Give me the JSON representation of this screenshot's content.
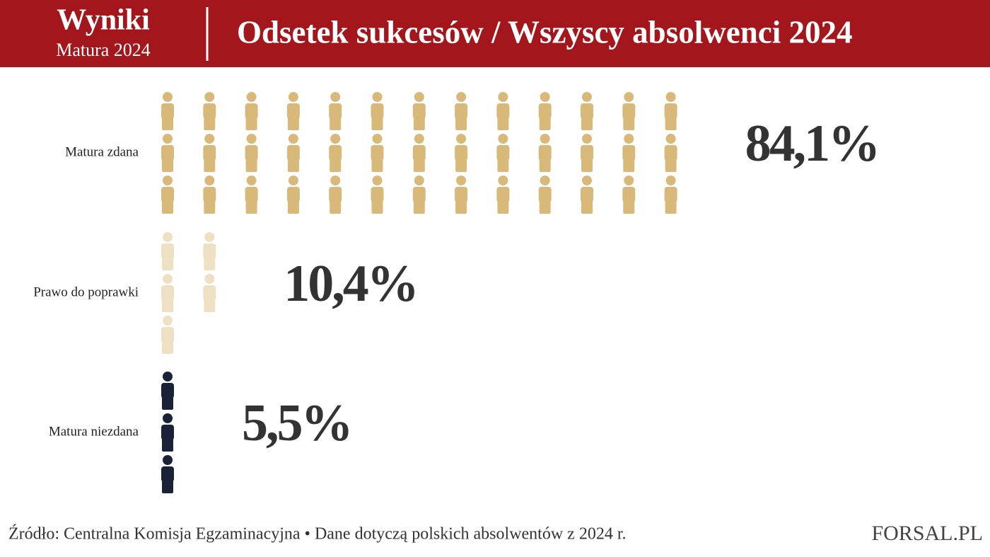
{
  "chart_data": {
    "type": "pictogram",
    "brand": "Wyniki",
    "brand_subtitle": "Matura 2024",
    "title": "Odsetek sukcesów / Wszyscy absolwenci 2024",
    "categories": [
      "Matura zdana",
      "Prawo do poprawki",
      "Matura niezdana"
    ],
    "values": [
      84.1,
      10.4,
      5.5
    ],
    "value_labels": [
      "84,1%",
      "10,4%",
      "5,5%"
    ],
    "colors": [
      "#d9b97a",
      "#ede0c3",
      "#1a2238"
    ],
    "source": "Źródło: Centralna Komisja Egzaminacyjna • Dane dotyczą polskich absolwentów z 2024 r.",
    "logo": "FORSAL.PL"
  }
}
